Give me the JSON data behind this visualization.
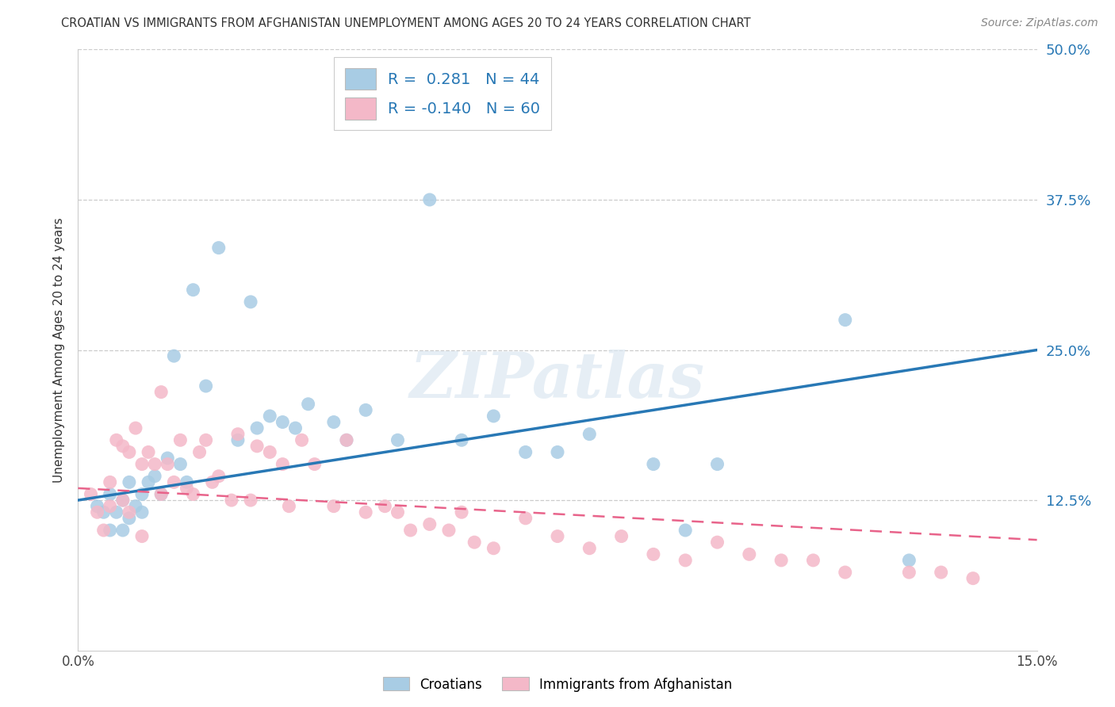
{
  "title": "CROATIAN VS IMMIGRANTS FROM AFGHANISTAN UNEMPLOYMENT AMONG AGES 20 TO 24 YEARS CORRELATION CHART",
  "source": "Source: ZipAtlas.com",
  "ylabel": "Unemployment Among Ages 20 to 24 years",
  "watermark": "ZIPatlas",
  "legend_label1": "Croatians",
  "legend_label2": "Immigrants from Afghanistan",
  "r1": "0.281",
  "n1": "44",
  "r2": "-0.140",
  "n2": "60",
  "color_blue": "#a8cce4",
  "color_pink": "#f4b8c8",
  "color_blue_line": "#2878b5",
  "color_pink_line": "#e8638a",
  "x_min": 0.0,
  "x_max": 0.15,
  "y_min": 0.0,
  "y_max": 0.5,
  "y_ticks": [
    0.125,
    0.25,
    0.375,
    0.5
  ],
  "x_ticks": [
    0.0,
    0.025,
    0.05,
    0.075,
    0.1,
    0.125,
    0.15
  ],
  "blue_line_x": [
    0.0,
    0.15
  ],
  "blue_line_y": [
    0.125,
    0.25
  ],
  "pink_line_x": [
    0.0,
    0.15
  ],
  "pink_line_y": [
    0.135,
    0.092
  ],
  "blue_dots_x": [
    0.003,
    0.004,
    0.005,
    0.005,
    0.006,
    0.007,
    0.007,
    0.008,
    0.008,
    0.009,
    0.01,
    0.01,
    0.011,
    0.012,
    0.013,
    0.014,
    0.015,
    0.016,
    0.017,
    0.018,
    0.02,
    0.022,
    0.025,
    0.027,
    0.028,
    0.03,
    0.032,
    0.034,
    0.036,
    0.04,
    0.042,
    0.045,
    0.05,
    0.055,
    0.06,
    0.065,
    0.07,
    0.075,
    0.08,
    0.09,
    0.095,
    0.1,
    0.12,
    0.13
  ],
  "blue_dots_y": [
    0.12,
    0.115,
    0.1,
    0.13,
    0.115,
    0.1,
    0.125,
    0.11,
    0.14,
    0.12,
    0.13,
    0.115,
    0.14,
    0.145,
    0.13,
    0.16,
    0.245,
    0.155,
    0.14,
    0.3,
    0.22,
    0.335,
    0.175,
    0.29,
    0.185,
    0.195,
    0.19,
    0.185,
    0.205,
    0.19,
    0.175,
    0.2,
    0.175,
    0.375,
    0.175,
    0.195,
    0.165,
    0.165,
    0.18,
    0.155,
    0.1,
    0.155,
    0.275,
    0.075
  ],
  "pink_dots_x": [
    0.002,
    0.003,
    0.004,
    0.005,
    0.005,
    0.006,
    0.007,
    0.007,
    0.008,
    0.008,
    0.009,
    0.01,
    0.01,
    0.011,
    0.012,
    0.013,
    0.013,
    0.014,
    0.015,
    0.016,
    0.017,
    0.018,
    0.019,
    0.02,
    0.021,
    0.022,
    0.024,
    0.025,
    0.027,
    0.028,
    0.03,
    0.032,
    0.033,
    0.035,
    0.037,
    0.04,
    0.042,
    0.045,
    0.048,
    0.05,
    0.052,
    0.055,
    0.058,
    0.06,
    0.062,
    0.065,
    0.07,
    0.075,
    0.08,
    0.085,
    0.09,
    0.095,
    0.1,
    0.105,
    0.11,
    0.115,
    0.12,
    0.13,
    0.135,
    0.14
  ],
  "pink_dots_y": [
    0.13,
    0.115,
    0.1,
    0.14,
    0.12,
    0.175,
    0.17,
    0.125,
    0.165,
    0.115,
    0.185,
    0.155,
    0.095,
    0.165,
    0.155,
    0.215,
    0.13,
    0.155,
    0.14,
    0.175,
    0.135,
    0.13,
    0.165,
    0.175,
    0.14,
    0.145,
    0.125,
    0.18,
    0.125,
    0.17,
    0.165,
    0.155,
    0.12,
    0.175,
    0.155,
    0.12,
    0.175,
    0.115,
    0.12,
    0.115,
    0.1,
    0.105,
    0.1,
    0.115,
    0.09,
    0.085,
    0.11,
    0.095,
    0.085,
    0.095,
    0.08,
    0.075,
    0.09,
    0.08,
    0.075,
    0.075,
    0.065,
    0.065,
    0.065,
    0.06
  ]
}
